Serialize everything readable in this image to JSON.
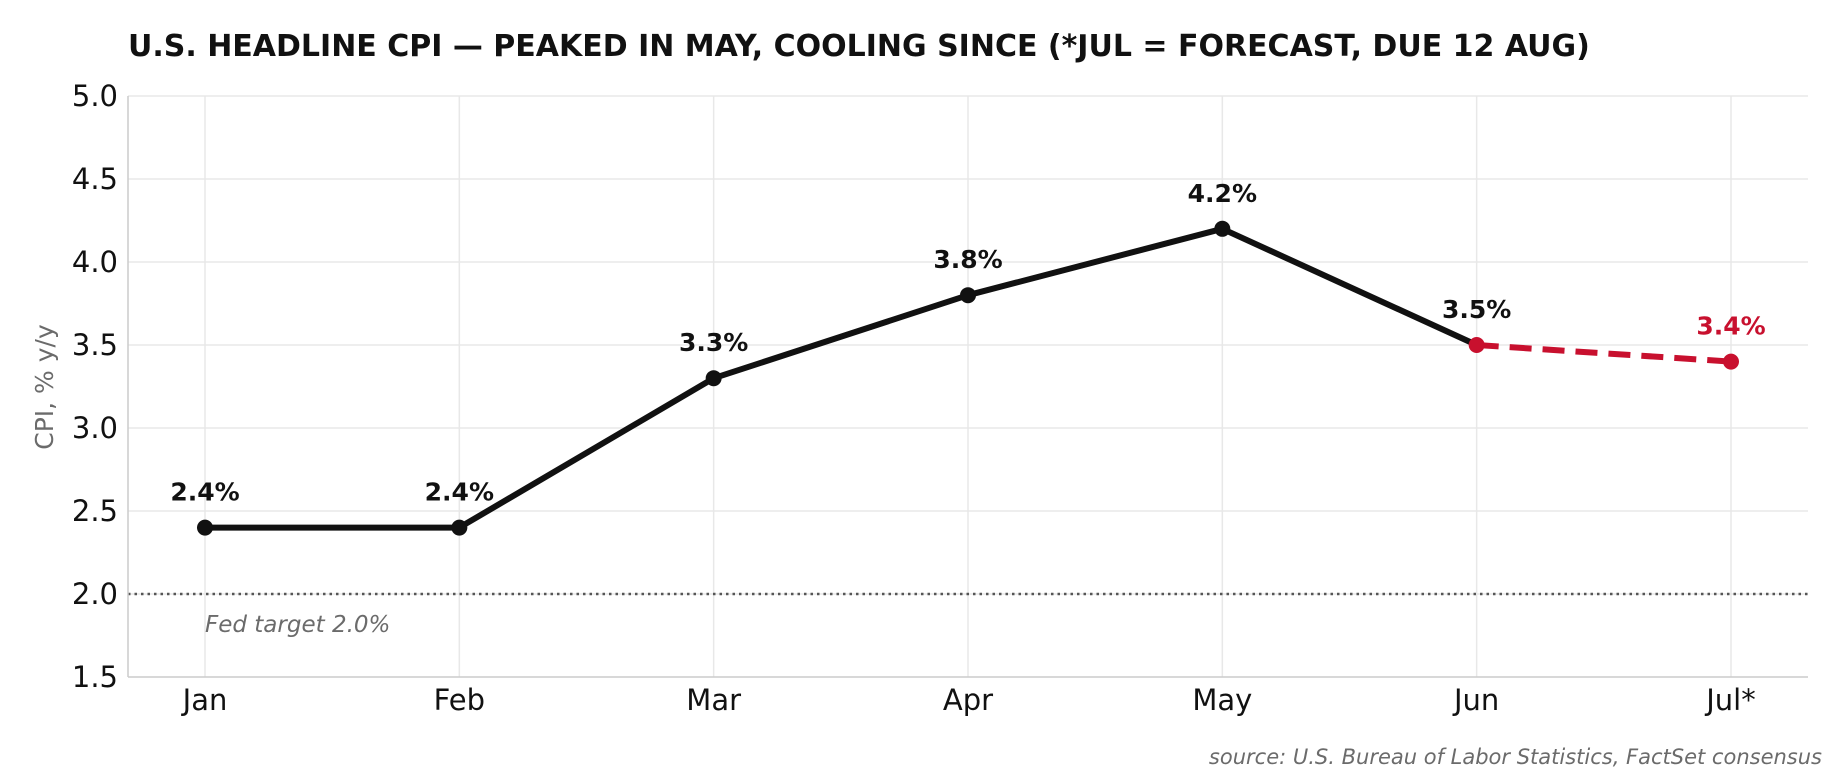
{
  "chart_data": {
    "type": "line",
    "title": "U.S. HEADLINE CPI — PEAKED IN MAY, COOLING SINCE (*JUL = FORECAST, DUE 12 AUG)",
    "xlabel": "",
    "ylabel": "CPI, % y/y",
    "categories": [
      "Jan",
      "Feb",
      "Mar",
      "Apr",
      "May",
      "Jun",
      "Jul*"
    ],
    "series": [
      {
        "values": [
          2.4,
          2.4,
          3.3,
          3.8,
          4.2,
          3.5,
          null
        ],
        "color": "#111111",
        "line_style": "solid"
      },
      {
        "values": [
          null,
          null,
          null,
          null,
          null,
          3.5,
          3.4
        ],
        "color": "#c8102e",
        "line_style": "dashed"
      }
    ],
    "data_labels": [
      "2.4%",
      "2.4%",
      "3.3%",
      "3.8%",
      "4.2%",
      "3.5%",
      "3.4%"
    ],
    "data_label_colors": [
      "#111111",
      "#111111",
      "#111111",
      "#111111",
      "#111111",
      "#111111",
      "#c8102e"
    ],
    "ylim": [
      1.5,
      5.0
    ],
    "yticks": [
      1.5,
      2.0,
      2.5,
      3.0,
      3.5,
      4.0,
      4.5,
      5.0
    ],
    "ytick_labels": [
      "1.5",
      "2.0",
      "2.5",
      "3.0",
      "3.5",
      "4.0",
      "4.5",
      "5.0"
    ],
    "reference_line": {
      "value": 2.0,
      "label": "Fed target 2.0%",
      "style": "dotted",
      "color": "#555555"
    },
    "grid": true,
    "legend": "none",
    "source": "source: U.S. Bureau of Labor Statistics, FactSet consensus"
  }
}
